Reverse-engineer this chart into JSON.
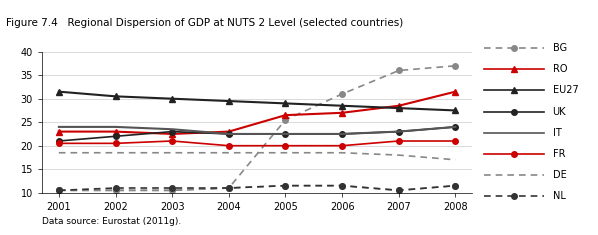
{
  "title": "Figure 7.4   Regional Dispersion of GDP at NUTS 2 Level (selected countries)",
  "footnote": "Data source: Eurostat (2011g).",
  "years": [
    2001,
    2002,
    2003,
    2004,
    2005,
    2006,
    2007,
    2008
  ],
  "series": {
    "BG": {
      "values": [
        10.5,
        10.5,
        10.5,
        11.0,
        11.5,
        11.5,
        10.5,
        11.5
      ],
      "color": "#888888",
      "linestyle": "dashed",
      "marker": "o",
      "linewidth": 1.2,
      "markersize": 4
    },
    "RO": {
      "values": [
        23.0,
        23.0,
        22.5,
        23.0,
        26.5,
        27.0,
        28.5,
        31.5
      ],
      "color": "#cc0000",
      "linestyle": "solid",
      "marker": "^",
      "linewidth": 1.5,
      "markersize": 5
    },
    "EU27": {
      "values": [
        31.5,
        30.5,
        30.0,
        29.5,
        29.0,
        28.5,
        28.0,
        27.5
      ],
      "color": "#222222",
      "linestyle": "solid",
      "marker": "^",
      "linewidth": 1.5,
      "markersize": 5
    },
    "UK": {
      "values": [
        21.0,
        22.0,
        23.0,
        22.5,
        22.5,
        22.5,
        23.0,
        24.0
      ],
      "color": "#222222",
      "linestyle": "solid",
      "marker": "o",
      "linewidth": 1.2,
      "markersize": 4
    },
    "IT": {
      "values": [
        24.0,
        24.0,
        23.5,
        22.5,
        22.5,
        22.5,
        23.0,
        24.0
      ],
      "color": "#555555",
      "linestyle": "solid",
      "marker": null,
      "linewidth": 1.5,
      "markersize": 0
    },
    "FR": {
      "values": [
        20.5,
        20.5,
        21.0,
        20.0,
        20.0,
        20.0,
        21.0,
        21.0
      ],
      "color": "#cc0000",
      "linestyle": "solid",
      "marker": "o",
      "linewidth": 1.2,
      "markersize": 4
    },
    "DE": {
      "values": [
        18.5,
        18.5,
        18.5,
        18.5,
        18.5,
        18.5,
        18.0,
        17.0
      ],
      "color": "#888888",
      "linestyle": "dashed",
      "marker": null,
      "linewidth": 1.2,
      "markersize": 0
    },
    "NL": {
      "values": [
        10.5,
        11.0,
        11.0,
        11.0,
        11.5,
        11.5,
        10.5,
        11.5
      ],
      "color": "#333333",
      "linestyle": "dashed",
      "marker": "o",
      "linewidth": 1.2,
      "markersize": 4
    }
  },
  "BG_high": {
    "values": [
      10.5,
      10.5,
      10.5,
      11.0,
      25.5,
      31.0,
      36.0,
      37.0
    ],
    "color": "#888888",
    "linestyle": "dashed",
    "marker": "o",
    "linewidth": 1.2,
    "markersize": 4
  },
  "ylim": [
    10,
    40
  ],
  "yticks": [
    10,
    15,
    20,
    25,
    30,
    35,
    40
  ],
  "title_fontsize": 7.5,
  "footnote_fontsize": 6.5,
  "label_fontsize": 7,
  "tick_fontsize": 7,
  "header_bg": "#b8d4e8",
  "plot_bg": "#ffffff",
  "fig_bg": "#ffffff"
}
